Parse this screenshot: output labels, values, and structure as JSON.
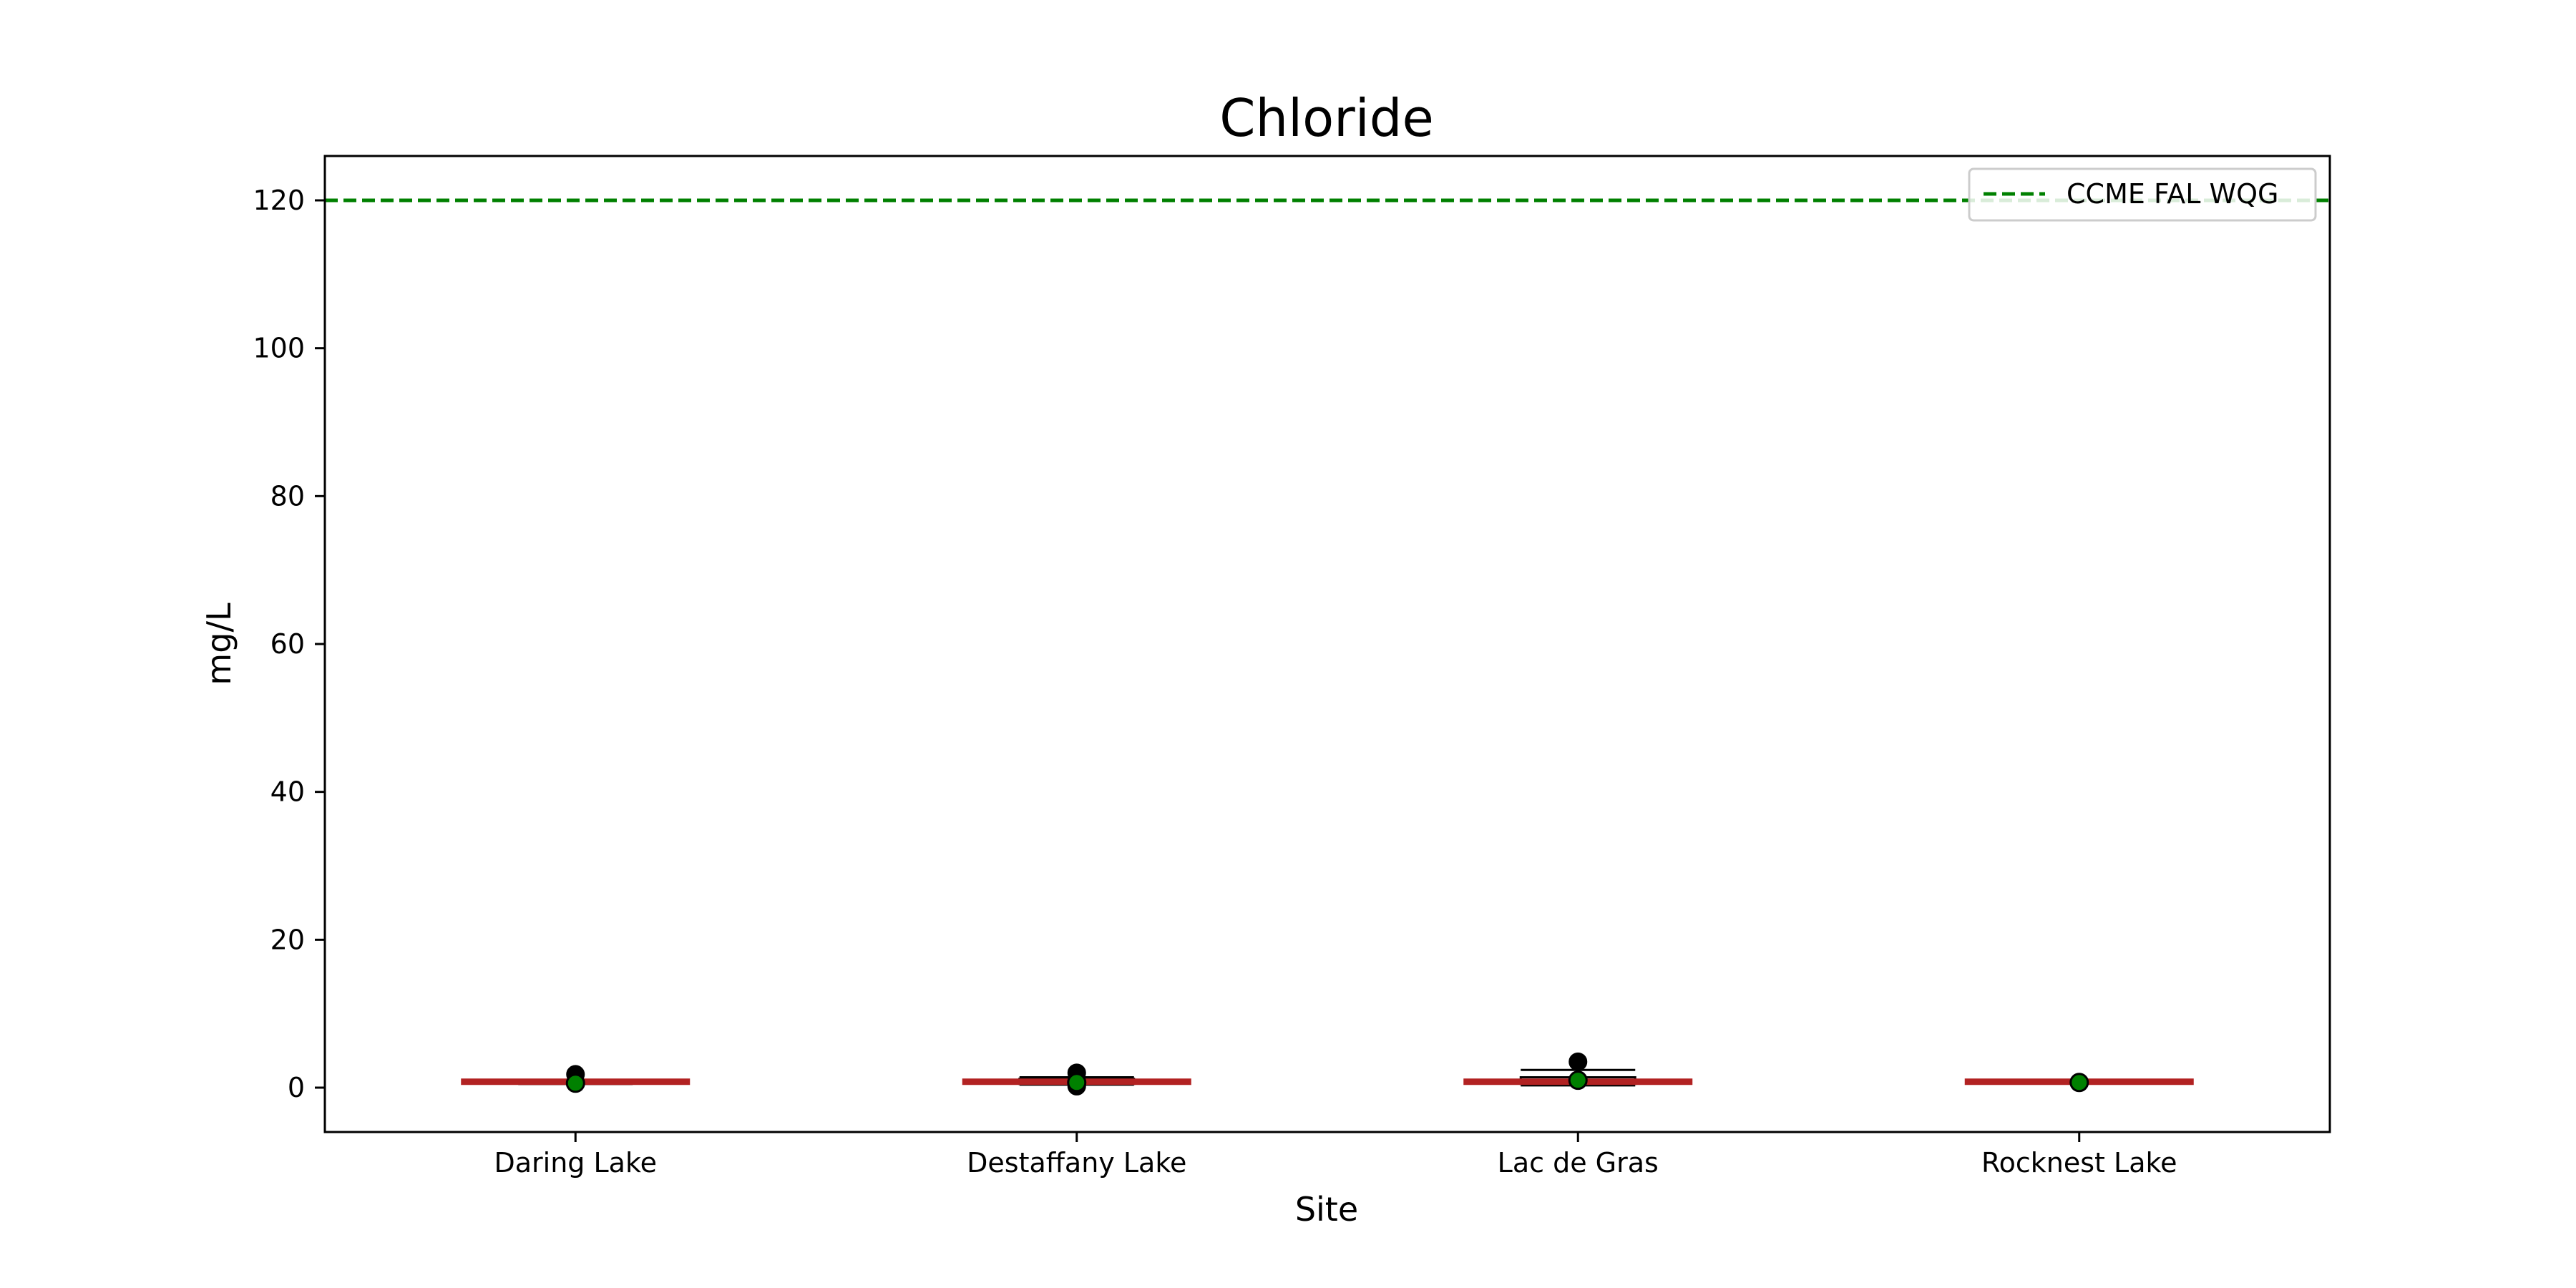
{
  "chart_data": {
    "type": "box",
    "title": "Chloride",
    "xlabel": "Site",
    "ylabel": "mg/L",
    "ylim": [
      -6,
      126
    ],
    "yticks": [
      0,
      20,
      40,
      60,
      80,
      100,
      120
    ],
    "grid": false,
    "legend_position": "top-right",
    "categories": [
      "Daring Lake",
      "Destaffany Lake",
      "Lac de Gras",
      "Rocknest Lake"
    ],
    "boxes": [
      {
        "site": "Daring Lake",
        "whisker_low": 0.5,
        "q1": 0.6,
        "median": 0.8,
        "q3": 1.0,
        "whisker_high": 1.0,
        "mean": 0.6,
        "outliers": [
          1.8
        ]
      },
      {
        "site": "Destaffany Lake",
        "whisker_low": 0.4,
        "q1": 0.5,
        "median": 0.8,
        "q3": 1.2,
        "whisker_high": 1.4,
        "mean": 0.7,
        "outliers": [
          2.0,
          0.2
        ]
      },
      {
        "site": "Lac de Gras",
        "whisker_low": 0.3,
        "q1": 0.5,
        "median": 0.8,
        "q3": 1.4,
        "whisker_high": 2.4,
        "mean": 1.0,
        "outliers": [
          3.5
        ]
      },
      {
        "site": "Rocknest Lake",
        "whisker_low": 0.7,
        "q1": 0.7,
        "median": 0.8,
        "q3": 0.8,
        "whisker_high": 0.8,
        "mean": 0.7,
        "outliers": []
      }
    ],
    "guideline": {
      "name": "CCME FAL WQG",
      "value": 120,
      "color": "#008000",
      "style": "dashed"
    },
    "colors": {
      "median": "#b22222",
      "mean_marker": "#008000",
      "box": "#000000",
      "outlier": "#000000"
    }
  }
}
